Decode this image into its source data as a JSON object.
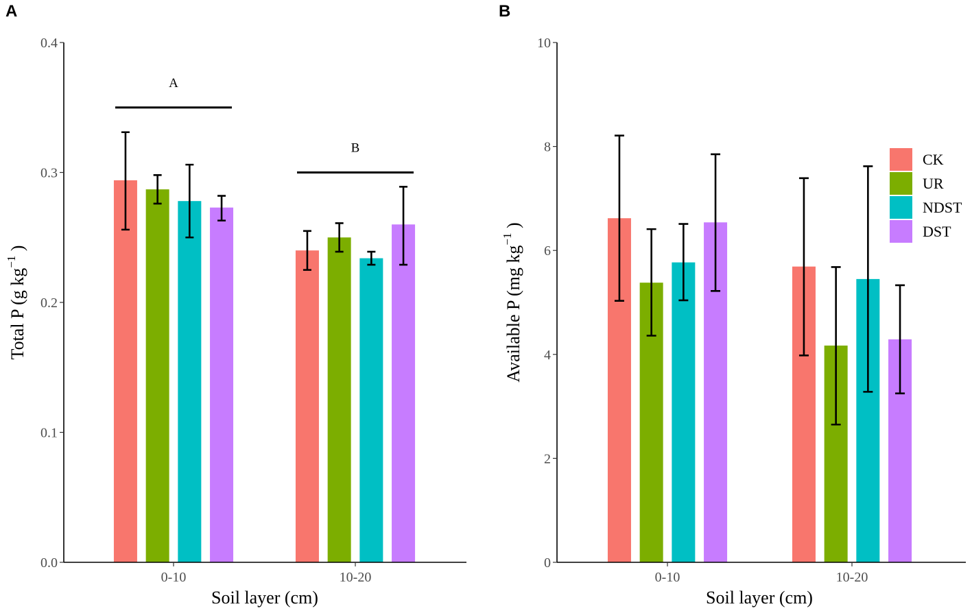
{
  "chart_data": [
    {
      "type": "bar",
      "panel": "A",
      "title": "",
      "xlabel": "Soil layer (cm)",
      "ylabel": "Total P (g  kg",
      "ylabel_sup": "−1",
      "ylabel_close": " )",
      "categories": [
        "0-10",
        "10-20"
      ],
      "ylim": [
        0,
        0.4
      ],
      "yticks": [
        0.0,
        0.1,
        0.2,
        0.3,
        0.4
      ],
      "ytick_labels": [
        "0.0",
        "0.1",
        "0.2",
        "0.3",
        "0.4"
      ],
      "series": [
        {
          "name": "CK",
          "values": [
            0.294,
            0.24
          ],
          "err_low": [
            0.256,
            0.225
          ],
          "err_high": [
            0.331,
            0.255
          ]
        },
        {
          "name": "UR",
          "values": [
            0.287,
            0.25
          ],
          "err_low": [
            0.276,
            0.239
          ],
          "err_high": [
            0.298,
            0.261
          ]
        },
        {
          "name": "NDST",
          "values": [
            0.278,
            0.234
          ],
          "err_low": [
            0.25,
            0.229
          ],
          "err_high": [
            0.306,
            0.239
          ]
        },
        {
          "name": "DST",
          "values": [
            0.273,
            0.26
          ],
          "err_low": [
            0.263,
            0.229
          ],
          "err_high": [
            0.282,
            0.289
          ]
        }
      ],
      "significance": [
        {
          "category": "0-10",
          "label": "A",
          "y": 0.35
        },
        {
          "category": "10-20",
          "label": "B",
          "y": 0.3
        }
      ]
    },
    {
      "type": "bar",
      "panel": "B",
      "title": "",
      "xlabel": "Soil layer (cm)",
      "ylabel": "Available P (mg  kg",
      "ylabel_sup": "−1",
      "ylabel_close": " )",
      "categories": [
        "0-10",
        "10-20"
      ],
      "ylim": [
        0,
        10
      ],
      "yticks": [
        0,
        2,
        4,
        6,
        8,
        10
      ],
      "ytick_labels": [
        "0",
        "2",
        "4",
        "6",
        "8",
        "10"
      ],
      "series": [
        {
          "name": "CK",
          "values": [
            6.62,
            5.69
          ],
          "err_low": [
            5.03,
            3.98
          ],
          "err_high": [
            8.21,
            7.39
          ]
        },
        {
          "name": "UR",
          "values": [
            5.38,
            4.17
          ],
          "err_low": [
            4.36,
            2.65
          ],
          "err_high": [
            6.41,
            5.68
          ]
        },
        {
          "name": "NDST",
          "values": [
            5.77,
            5.45
          ],
          "err_low": [
            5.04,
            3.28
          ],
          "err_high": [
            6.51,
            7.62
          ]
        },
        {
          "name": "DST",
          "values": [
            6.54,
            4.29
          ],
          "err_low": [
            5.22,
            3.25
          ],
          "err_high": [
            7.85,
            5.33
          ]
        }
      ],
      "legend": [
        "CK",
        "UR",
        "NDST",
        "DST"
      ],
      "legend_position": "right"
    }
  ],
  "colors": {
    "CK": "#F8766D",
    "UR": "#7CAE00",
    "NDST": "#00BFC4",
    "DST": "#C77CFF"
  }
}
